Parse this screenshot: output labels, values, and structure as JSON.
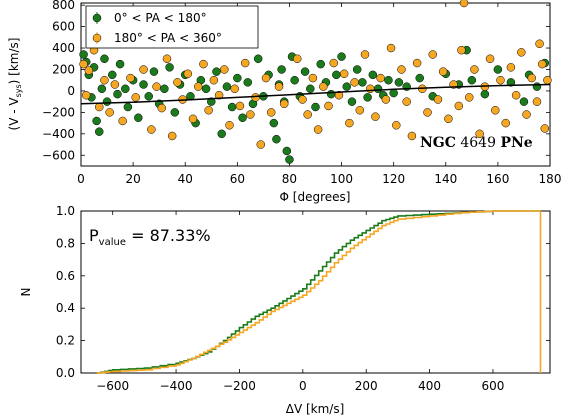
{
  "figure": {
    "top_panel": {
      "title_parts": [
        "NGC",
        " 4649 ",
        "PNe"
      ],
      "xlabel": "Φ [degrees]",
      "ylabel": "(V - V",
      "ylabel_sub": "sys",
      "ylabel_tail": ") [km/s]"
    },
    "bottom_panel": {
      "annotation": "P",
      "annotation_sub": "value",
      "annotation_value": " = 87.33%",
      "xlabel": "ΔV [km/s]",
      "ylabel": "N"
    },
    "legend": [
      {
        "label": "0° < PA < 180°",
        "color": "#1b7a1b"
      },
      {
        "label": "180° < PA < 360°",
        "color": "#f5a623"
      }
    ],
    "colors": {
      "green": "#1b7a1b",
      "orange": "#f5a623",
      "trend": "#000000"
    }
  },
  "chart_data": [
    {
      "type": "scatter",
      "xlabel": "Φ [degrees]",
      "ylabel": "(V - Vsys) [km/s]",
      "xlim": [
        0,
        180
      ],
      "ylim": [
        -700,
        820
      ],
      "xticks": [
        0,
        20,
        40,
        60,
        80,
        100,
        120,
        140,
        160,
        180
      ],
      "yticks": [
        -600,
        -400,
        -200,
        0,
        200,
        400,
        600,
        800
      ],
      "series": [
        {
          "name": "0° < PA < 180°",
          "color": "#1b7a1b",
          "points": [
            [
              1,
              340
            ],
            [
              2,
              270
            ],
            [
              3,
              150
            ],
            [
              4,
              -60
            ],
            [
              5,
              220
            ],
            [
              6,
              -280
            ],
            [
              7,
              -380
            ],
            [
              8,
              20
            ],
            [
              9,
              300
            ],
            [
              10,
              -100
            ],
            [
              12,
              150
            ],
            [
              14,
              -30
            ],
            [
              15,
              250
            ],
            [
              17,
              20
            ],
            [
              18,
              -150
            ],
            [
              20,
              100
            ],
            [
              22,
              -250
            ],
            [
              24,
              60
            ],
            [
              26,
              -50
            ],
            [
              28,
              180
            ],
            [
              30,
              -120
            ],
            [
              32,
              20
            ],
            [
              34,
              220
            ],
            [
              36,
              -200
            ],
            [
              38,
              60
            ],
            [
              40,
              150
            ],
            [
              42,
              -50
            ],
            [
              44,
              -300
            ],
            [
              46,
              100
            ],
            [
              48,
              20
            ],
            [
              50,
              -100
            ],
            [
              52,
              180
            ],
            [
              54,
              -400
            ],
            [
              56,
              40
            ],
            [
              58,
              -150
            ],
            [
              60,
              120
            ],
            [
              62,
              -250
            ],
            [
              64,
              80
            ],
            [
              66,
              -120
            ],
            [
              68,
              300
            ],
            [
              70,
              -50
            ],
            [
              72,
              150
            ],
            [
              74,
              -300
            ],
            [
              75,
              -450
            ],
            [
              76,
              60
            ],
            [
              77,
              200
            ],
            [
              78,
              -100
            ],
            [
              79,
              -560
            ],
            [
              80,
              -640
            ],
            [
              81,
              320
            ],
            [
              82,
              100
            ],
            [
              84,
              -50
            ],
            [
              86,
              180
            ],
            [
              88,
              20
            ],
            [
              90,
              -150
            ],
            [
              92,
              250
            ],
            [
              94,
              80
            ],
            [
              96,
              -30
            ],
            [
              98,
              150
            ],
            [
              100,
              320
            ],
            [
              102,
              40
            ],
            [
              104,
              -100
            ],
            [
              106,
              200
            ],
            [
              108,
              80
            ],
            [
              110,
              -60
            ],
            [
              112,
              150
            ],
            [
              114,
              20
            ],
            [
              116,
              -40
            ],
            [
              118,
              100
            ],
            [
              120,
              -20
            ],
            [
              122,
              80
            ],
            [
              125,
              40
            ],
            [
              130,
              120
            ],
            [
              135,
              -50
            ],
            [
              140,
              160
            ],
            [
              145,
              60
            ],
            [
              148,
              380
            ],
            [
              150,
              100
            ],
            [
              155,
              -30
            ],
            [
              160,
              200
            ],
            [
              165,
              80
            ],
            [
              170,
              -100
            ],
            [
              172,
              150
            ],
            [
              175,
              40
            ],
            [
              178,
              260
            ]
          ]
        },
        {
          "name": "180° < PA < 360°",
          "color": "#f5a623",
          "points": [
            [
              1,
              250
            ],
            [
              2,
              -40
            ],
            [
              3,
              190
            ],
            [
              5,
              380
            ],
            [
              7,
              -150
            ],
            [
              9,
              100
            ],
            [
              11,
              -200
            ],
            [
              13,
              60
            ],
            [
              16,
              -280
            ],
            [
              19,
              120
            ],
            [
              21,
              -60
            ],
            [
              24,
              200
            ],
            [
              27,
              -360
            ],
            [
              29,
              40
            ],
            [
              31,
              -160
            ],
            [
              33,
              300
            ],
            [
              35,
              -420
            ],
            [
              37,
              80
            ],
            [
              39,
              -80
            ],
            [
              41,
              160
            ],
            [
              43,
              -260
            ],
            [
              45,
              40
            ],
            [
              47,
              250
            ],
            [
              49,
              -180
            ],
            [
              51,
              100
            ],
            [
              53,
              -40
            ],
            [
              55,
              200
            ],
            [
              57,
              -320
            ],
            [
              59,
              20
            ],
            [
              61,
              -140
            ],
            [
              63,
              260
            ],
            [
              65,
              -220
            ],
            [
              67,
              -60
            ],
            [
              69,
              -500
            ],
            [
              71,
              120
            ],
            [
              73,
              -200
            ],
            [
              76,
              40
            ],
            [
              78,
              -120
            ],
            [
              83,
              300
            ],
            [
              85,
              -80
            ],
            [
              87,
              -220
            ],
            [
              89,
              120
            ],
            [
              91,
              -360
            ],
            [
              93,
              40
            ],
            [
              95,
              -140
            ],
            [
              97,
              260
            ],
            [
              99,
              -40
            ],
            [
              101,
              160
            ],
            [
              103,
              -300
            ],
            [
              105,
              80
            ],
            [
              107,
              -180
            ],
            [
              109,
              340
            ],
            [
              111,
              20
            ],
            [
              113,
              -240
            ],
            [
              115,
              120
            ],
            [
              117,
              -80
            ],
            [
              119,
              400
            ],
            [
              121,
              -320
            ],
            [
              123,
              200
            ],
            [
              125,
              -100
            ],
            [
              127,
              -420
            ],
            [
              129,
              260
            ],
            [
              131,
              20
            ],
            [
              133,
              -200
            ],
            [
              135,
              340
            ],
            [
              137,
              -80
            ],
            [
              139,
              180
            ],
            [
              141,
              -260
            ],
            [
              143,
              60
            ],
            [
              145,
              -140
            ],
            [
              146,
              380
            ],
            [
              147,
              820
            ],
            [
              149,
              -60
            ],
            [
              151,
              200
            ],
            [
              153,
              -400
            ],
            [
              155,
              40
            ],
            [
              157,
              300
            ],
            [
              159,
              -180
            ],
            [
              161,
              100
            ],
            [
              163,
              -300
            ],
            [
              165,
              220
            ],
            [
              167,
              -40
            ],
            [
              169,
              360
            ],
            [
              171,
              -220
            ],
            [
              173,
              120
            ],
            [
              175,
              -100
            ],
            [
              176,
              440
            ],
            [
              177,
              250
            ],
            [
              178,
              -350
            ],
            [
              179,
              100
            ]
          ]
        }
      ],
      "trend": {
        "name": "",
        "color": "#000000",
        "points": [
          [
            0,
            -120
          ],
          [
            20,
            -105
          ],
          [
            40,
            -85
          ],
          [
            60,
            -60
          ],
          [
            80,
            -35
          ],
          [
            100,
            -10
          ],
          [
            120,
            15
          ],
          [
            140,
            35
          ],
          [
            160,
            50
          ],
          [
            180,
            60
          ]
        ]
      }
    },
    {
      "type": "line",
      "xlabel": "ΔV [km/s]",
      "ylabel": "N",
      "xlim": [
        -700,
        780
      ],
      "ylim": [
        0,
        1.0
      ],
      "xticks": [
        -600,
        -400,
        -200,
        0,
        200,
        400,
        600
      ],
      "yticks": [
        0.0,
        0.2,
        0.4,
        0.6,
        0.8,
        1.0
      ],
      "series": [
        {
          "name": "0° < PA < 180°",
          "color": "#1b7a1b",
          "x": [
            -650,
            -600,
            -500,
            -400,
            -350,
            -300,
            -250,
            -200,
            -150,
            -100,
            -50,
            0,
            50,
            100,
            150,
            200,
            250,
            300,
            400,
            500,
            600,
            700,
            750
          ],
          "y": [
            0.0,
            0.02,
            0.03,
            0.06,
            0.09,
            0.13,
            0.2,
            0.28,
            0.35,
            0.4,
            0.46,
            0.52,
            0.63,
            0.74,
            0.82,
            0.88,
            0.94,
            0.97,
            0.98,
            0.99,
            1.0,
            1.0,
            1.0
          ]
        },
        {
          "name": "180° < PA < 360°",
          "color": "#f5a623",
          "x": [
            -650,
            -600,
            -500,
            -400,
            -350,
            -300,
            -250,
            -200,
            -150,
            -100,
            -50,
            0,
            50,
            100,
            150,
            200,
            250,
            300,
            400,
            500,
            600,
            700,
            750
          ],
          "y": [
            0.0,
            0.01,
            0.02,
            0.05,
            0.09,
            0.14,
            0.19,
            0.25,
            0.31,
            0.38,
            0.43,
            0.48,
            0.57,
            0.68,
            0.77,
            0.84,
            0.91,
            0.95,
            0.97,
            0.99,
            1.0,
            1.0,
            1.0
          ]
        }
      ]
    }
  ]
}
